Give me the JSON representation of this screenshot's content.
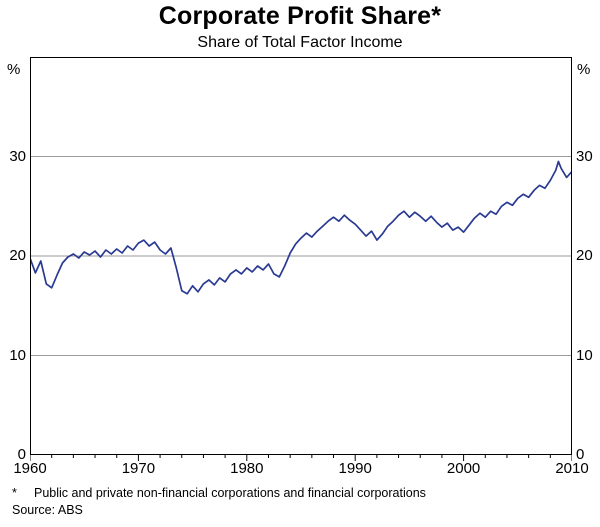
{
  "header": {
    "title": "Corporate Profit Share*",
    "subtitle": "Share of Total Factor Income"
  },
  "footnote": {
    "marker": "*",
    "text": "Public and private non-financial corporations and financial corporations",
    "source": "Source: ABS"
  },
  "chart_data": {
    "type": "line",
    "title": "Corporate Profit Share*",
    "subtitle": "Share of Total Factor Income",
    "unit_left": "%",
    "unit_right": "%",
    "xlabel": "",
    "ylabel": "%",
    "xlim": [
      1960,
      2010
    ],
    "ylim": [
      0,
      40
    ],
    "yticks": [
      0,
      10,
      20,
      30
    ],
    "gridlines": [
      10,
      20,
      30
    ],
    "xticks": [
      1960,
      1970,
      1980,
      1990,
      2000,
      2010
    ],
    "grid_on": true,
    "legend": "none",
    "line_color": "#2a3a92",
    "grid_color": "#9a9a9a",
    "frame_color": "#000000",
    "series": [
      {
        "name": "Corporate profit share of total factor income (%)",
        "points": [
          [
            1960,
            19.8
          ],
          [
            1960.5,
            18.3
          ],
          [
            1961,
            19.5
          ],
          [
            1961.5,
            17.2
          ],
          [
            1962,
            16.8
          ],
          [
            1962.5,
            18.1
          ],
          [
            1963,
            19.3
          ],
          [
            1963.5,
            19.9
          ],
          [
            1964,
            20.2
          ],
          [
            1964.5,
            19.8
          ],
          [
            1965,
            20.4
          ],
          [
            1965.5,
            20.1
          ],
          [
            1966,
            20.5
          ],
          [
            1966.5,
            19.9
          ],
          [
            1967,
            20.6
          ],
          [
            1967.5,
            20.2
          ],
          [
            1968,
            20.7
          ],
          [
            1968.5,
            20.3
          ],
          [
            1969,
            21.0
          ],
          [
            1969.5,
            20.6
          ],
          [
            1970,
            21.3
          ],
          [
            1970.5,
            21.6
          ],
          [
            1971,
            21.0
          ],
          [
            1971.5,
            21.4
          ],
          [
            1972,
            20.6
          ],
          [
            1972.5,
            20.2
          ],
          [
            1973,
            20.8
          ],
          [
            1973.5,
            18.8
          ],
          [
            1974,
            16.5
          ],
          [
            1974.5,
            16.2
          ],
          [
            1975,
            17.0
          ],
          [
            1975.5,
            16.4
          ],
          [
            1976,
            17.2
          ],
          [
            1976.5,
            17.6
          ],
          [
            1977,
            17.1
          ],
          [
            1977.5,
            17.8
          ],
          [
            1978,
            17.4
          ],
          [
            1978.5,
            18.2
          ],
          [
            1979,
            18.6
          ],
          [
            1979.5,
            18.2
          ],
          [
            1980,
            18.8
          ],
          [
            1980.5,
            18.4
          ],
          [
            1981,
            19.0
          ],
          [
            1981.5,
            18.6
          ],
          [
            1982,
            19.2
          ],
          [
            1982.5,
            18.2
          ],
          [
            1983,
            17.9
          ],
          [
            1983.5,
            19.0
          ],
          [
            1984,
            20.3
          ],
          [
            1984.5,
            21.2
          ],
          [
            1985,
            21.8
          ],
          [
            1985.5,
            22.3
          ],
          [
            1986,
            21.9
          ],
          [
            1986.5,
            22.5
          ],
          [
            1987,
            23.0
          ],
          [
            1987.5,
            23.5
          ],
          [
            1988,
            23.9
          ],
          [
            1988.5,
            23.5
          ],
          [
            1989,
            24.1
          ],
          [
            1989.5,
            23.6
          ],
          [
            1990,
            23.2
          ],
          [
            1990.5,
            22.6
          ],
          [
            1991,
            22.0
          ],
          [
            1991.5,
            22.5
          ],
          [
            1992,
            21.6
          ],
          [
            1992.5,
            22.2
          ],
          [
            1993,
            23.0
          ],
          [
            1993.5,
            23.5
          ],
          [
            1994,
            24.1
          ],
          [
            1994.5,
            24.5
          ],
          [
            1995,
            23.9
          ],
          [
            1995.5,
            24.4
          ],
          [
            1996,
            24.0
          ],
          [
            1996.5,
            23.5
          ],
          [
            1997,
            24.0
          ],
          [
            1997.5,
            23.4
          ],
          [
            1998,
            22.9
          ],
          [
            1998.5,
            23.3
          ],
          [
            1999,
            22.6
          ],
          [
            1999.5,
            22.9
          ],
          [
            2000,
            22.4
          ],
          [
            2000.5,
            23.1
          ],
          [
            2001,
            23.8
          ],
          [
            2001.5,
            24.3
          ],
          [
            2002,
            23.9
          ],
          [
            2002.5,
            24.5
          ],
          [
            2003,
            24.2
          ],
          [
            2003.5,
            25.0
          ],
          [
            2004,
            25.4
          ],
          [
            2004.5,
            25.1
          ],
          [
            2005,
            25.8
          ],
          [
            2005.5,
            26.2
          ],
          [
            2006,
            25.9
          ],
          [
            2006.5,
            26.6
          ],
          [
            2007,
            27.1
          ],
          [
            2007.5,
            26.8
          ],
          [
            2008,
            27.6
          ],
          [
            2008.5,
            28.6
          ],
          [
            2008.75,
            29.5
          ],
          [
            2009,
            28.8
          ],
          [
            2009.5,
            27.9
          ],
          [
            2010,
            28.5
          ]
        ]
      }
    ]
  }
}
